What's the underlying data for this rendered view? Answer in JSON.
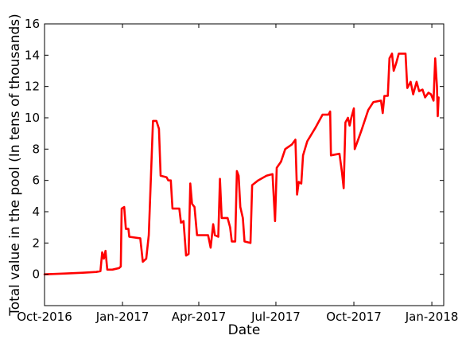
{
  "chart_data": {
    "type": "line",
    "title": "",
    "xlabel": "Date",
    "ylabel": "Total value in the pool (In tens of thousands)",
    "xlim": [
      "2016-10-01",
      "2018-01-15"
    ],
    "ylim": [
      -2,
      16
    ],
    "y_ticks": [
      0,
      2,
      4,
      6,
      8,
      10,
      12,
      14,
      16
    ],
    "x_ticks": [
      {
        "date": "2016-10-01",
        "label": "Oct-2016"
      },
      {
        "date": "2017-01-01",
        "label": "Jan-2017"
      },
      {
        "date": "2017-04-01",
        "label": "Apr-2017"
      },
      {
        "date": "2017-07-01",
        "label": "Jul-2017"
      },
      {
        "date": "2017-10-01",
        "label": "Oct-2017"
      },
      {
        "date": "2018-01-01",
        "label": "Jan-2018"
      }
    ],
    "grid": false,
    "series": [
      {
        "color": "#ff0000",
        "points": [
          [
            "2016-10-01",
            0.0
          ],
          [
            "2016-10-25",
            0.05
          ],
          [
            "2016-11-15",
            0.1
          ],
          [
            "2016-12-01",
            0.15
          ],
          [
            "2016-12-06",
            0.2
          ],
          [
            "2016-12-08",
            1.4
          ],
          [
            "2016-12-10",
            1.0
          ],
          [
            "2016-12-12",
            1.5
          ],
          [
            "2016-12-14",
            0.3
          ],
          [
            "2016-12-20",
            0.3
          ],
          [
            "2016-12-28",
            0.4
          ],
          [
            "2016-12-30",
            0.5
          ],
          [
            "2016-12-31",
            4.2
          ],
          [
            "2017-01-03",
            4.3
          ],
          [
            "2017-01-05",
            2.9
          ],
          [
            "2017-01-08",
            2.9
          ],
          [
            "2017-01-09",
            2.4
          ],
          [
            "2017-01-22",
            2.3
          ],
          [
            "2017-01-25",
            0.8
          ],
          [
            "2017-01-29",
            1.0
          ],
          [
            "2017-02-01",
            2.5
          ],
          [
            "2017-02-06",
            9.8
          ],
          [
            "2017-02-10",
            9.8
          ],
          [
            "2017-02-13",
            9.3
          ],
          [
            "2017-02-15",
            6.3
          ],
          [
            "2017-02-22",
            6.2
          ],
          [
            "2017-02-24",
            6.0
          ],
          [
            "2017-02-27",
            6.0
          ],
          [
            "2017-03-01",
            4.2
          ],
          [
            "2017-03-09",
            4.2
          ],
          [
            "2017-03-11",
            3.3
          ],
          [
            "2017-03-14",
            3.4
          ],
          [
            "2017-03-17",
            1.2
          ],
          [
            "2017-03-20",
            1.3
          ],
          [
            "2017-03-22",
            5.8
          ],
          [
            "2017-03-24",
            4.5
          ],
          [
            "2017-03-27",
            4.3
          ],
          [
            "2017-03-30",
            2.5
          ],
          [
            "2017-04-12",
            2.5
          ],
          [
            "2017-04-15",
            1.7
          ],
          [
            "2017-04-18",
            3.2
          ],
          [
            "2017-04-20",
            2.5
          ],
          [
            "2017-04-24",
            2.4
          ],
          [
            "2017-04-26",
            6.1
          ],
          [
            "2017-04-28",
            3.6
          ],
          [
            "2017-05-05",
            3.6
          ],
          [
            "2017-05-08",
            3.0
          ],
          [
            "2017-05-10",
            2.1
          ],
          [
            "2017-05-14",
            2.1
          ],
          [
            "2017-05-16",
            6.6
          ],
          [
            "2017-05-18",
            6.3
          ],
          [
            "2017-05-20",
            4.3
          ],
          [
            "2017-05-23",
            3.6
          ],
          [
            "2017-05-25",
            2.1
          ],
          [
            "2017-06-01",
            2.0
          ],
          [
            "2017-06-03",
            5.7
          ],
          [
            "2017-06-10",
            6.0
          ],
          [
            "2017-06-20",
            6.3
          ],
          [
            "2017-06-27",
            6.4
          ],
          [
            "2017-06-30",
            3.4
          ],
          [
            "2017-07-02",
            6.8
          ],
          [
            "2017-07-07",
            7.2
          ],
          [
            "2017-07-12",
            8.0
          ],
          [
            "2017-07-20",
            8.3
          ],
          [
            "2017-07-24",
            8.6
          ],
          [
            "2017-07-26",
            5.1
          ],
          [
            "2017-07-28",
            5.9
          ],
          [
            "2017-07-31",
            5.8
          ],
          [
            "2017-08-02",
            7.6
          ],
          [
            "2017-08-07",
            8.5
          ],
          [
            "2017-08-17",
            9.4
          ],
          [
            "2017-08-25",
            10.2
          ],
          [
            "2017-09-01",
            10.2
          ],
          [
            "2017-09-03",
            10.4
          ],
          [
            "2017-09-04",
            7.6
          ],
          [
            "2017-09-14",
            7.7
          ],
          [
            "2017-09-17",
            6.5
          ],
          [
            "2017-09-19",
            5.5
          ],
          [
            "2017-09-21",
            9.7
          ],
          [
            "2017-09-24",
            10.0
          ],
          [
            "2017-09-26",
            9.5
          ],
          [
            "2017-09-28",
            10.0
          ],
          [
            "2017-10-01",
            10.6
          ],
          [
            "2017-10-02",
            8.0
          ],
          [
            "2017-10-06",
            8.6
          ],
          [
            "2017-10-10",
            9.2
          ],
          [
            "2017-10-18",
            10.5
          ],
          [
            "2017-10-24",
            11.0
          ],
          [
            "2017-11-02",
            11.1
          ],
          [
            "2017-11-04",
            10.3
          ],
          [
            "2017-11-06",
            11.4
          ],
          [
            "2017-11-10",
            11.4
          ],
          [
            "2017-11-12",
            13.8
          ],
          [
            "2017-11-15",
            14.1
          ],
          [
            "2017-11-17",
            13.0
          ],
          [
            "2017-11-20",
            13.5
          ],
          [
            "2017-11-23",
            14.1
          ],
          [
            "2017-12-01",
            14.1
          ],
          [
            "2017-12-03",
            11.9
          ],
          [
            "2017-12-07",
            12.3
          ],
          [
            "2017-12-10",
            11.5
          ],
          [
            "2017-12-14",
            12.3
          ],
          [
            "2017-12-17",
            11.7
          ],
          [
            "2017-12-21",
            11.8
          ],
          [
            "2017-12-24",
            11.3
          ],
          [
            "2017-12-28",
            11.6
          ],
          [
            "2017-12-31",
            11.5
          ],
          [
            "2018-01-03",
            11.1
          ],
          [
            "2018-01-05",
            13.8
          ],
          [
            "2018-01-07",
            12.0
          ],
          [
            "2018-01-08",
            10.1
          ],
          [
            "2018-01-09",
            11.3
          ]
        ]
      }
    ]
  }
}
